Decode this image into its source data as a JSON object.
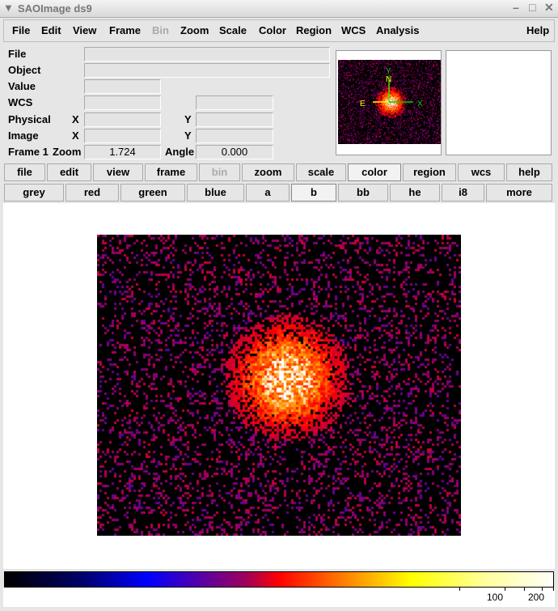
{
  "window": {
    "title": "SAOImage ds9"
  },
  "menu": [
    "File",
    "Edit",
    "View",
    "Frame",
    "Bin",
    "Zoom",
    "Scale",
    "Color",
    "Region",
    "WCS",
    "Analysis",
    "Help"
  ],
  "info": {
    "file_label": "File",
    "object_label": "Object",
    "value_label": "Value",
    "wcs_label": "WCS",
    "physical_label": "Physical",
    "image_label": "Image",
    "x": "X",
    "y": "Y",
    "frame_label": "Frame 1",
    "zoom_label": "Zoom",
    "zoom_value": "1.724",
    "angle_label": "Angle",
    "angle_value": "0.000"
  },
  "panner": {
    "n": "N",
    "e": "E",
    "x": "X",
    "y": "Y"
  },
  "buttons_row1": [
    "file",
    "edit",
    "view",
    "frame",
    "bin",
    "zoom",
    "scale",
    "color",
    "region",
    "wcs",
    "help"
  ],
  "buttons_row2": [
    "grey",
    "red",
    "green",
    "blue",
    "a",
    "b",
    "bb",
    "he",
    "i8",
    "more"
  ],
  "active_row1": "color",
  "active_row2": "b",
  "colorbar": {
    "colormap": "b",
    "labels": [
      "100",
      "200"
    ]
  }
}
